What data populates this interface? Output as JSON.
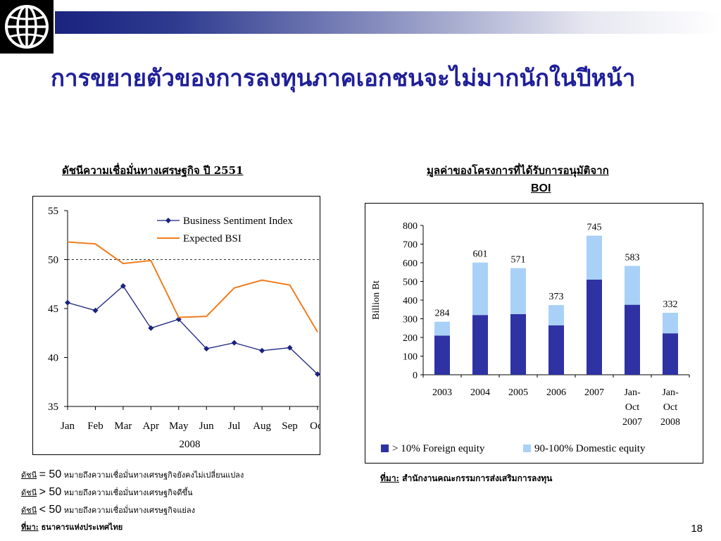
{
  "slide": {
    "title": "การขยายตัวของการลงทุนภาคเอกชนจะไม่มากนักในปีหน้า",
    "page_number": "18"
  },
  "colors": {
    "title_blue": "#1f1f99",
    "bsi_navy": "#1a237e",
    "expected_orange": "#ef7d1e",
    "foreign_bar": "#2e32a3",
    "domestic_bar": "#a9d1f7"
  },
  "left_chart": {
    "heading": "ดัชนีความเชื่อมั่นทางเศรษฐกิจ ปี 2551",
    "notes": [
      {
        "prefix": "ดัชนี",
        "op": "= 50",
        "text": " หมายถึงความเชื่อมั่นทางเศรษฐกิจยังคงไม่เปลี่ยนแปลง"
      },
      {
        "prefix": "ดัชนี",
        "op": "> 50",
        "text": " หมายถึงความเชื่อมั่นทางเศรษฐกิจดีขึ้น"
      },
      {
        "prefix": "ดัชนี",
        "op": "< 50",
        "text": " หมายถึงความเชื่อมั่นทางเศรษฐกิจแย่ลง"
      }
    ],
    "source_label": "ที่มา:",
    "source_text": " ธนาคารแห่งประเทศไทย"
  },
  "right_chart": {
    "heading_line1": "มูลค่าของโครงการที่ได้รับการอนุมัติจาก",
    "heading_line2": "BOI",
    "source_label": "ที่มา:",
    "source_text": " สำนักงานคณะกรรมการส่งเสริมการลงทุน"
  },
  "chart_data": [
    {
      "type": "line",
      "title": "ดัชนีความเชื่อมั่นทางเศรษฐกิจ ปี 2551",
      "xlabel": "2008",
      "ylabel": "",
      "categories": [
        "Jan",
        "Feb",
        "Mar",
        "Apr",
        "May",
        "Jun",
        "Jul",
        "Aug",
        "Sep",
        "Oct"
      ],
      "ylim": [
        35,
        55
      ],
      "yticks": [
        35,
        40,
        45,
        50,
        55
      ],
      "reference_line": 50,
      "legend_position": "top-right",
      "series": [
        {
          "name": "Business Sentiment Index",
          "values": [
            45.6,
            44.8,
            47.3,
            43.0,
            43.9,
            40.9,
            41.5,
            40.7,
            41.0,
            38.3
          ]
        },
        {
          "name": "Expected BSI",
          "values": [
            51.8,
            51.6,
            49.6,
            49.9,
            44.1,
            44.2,
            47.1,
            47.9,
            47.4,
            42.6
          ]
        }
      ]
    },
    {
      "type": "bar",
      "stacked": true,
      "title": "มูลค่าของโครงการที่ได้รับการอนุมัติจาก BOI",
      "xlabel": "",
      "ylabel": "Billion Bt",
      "categories": [
        "2003",
        "2004",
        "2005",
        "2006",
        "2007",
        "Jan-Oct 2007",
        "Jan-Oct 2008"
      ],
      "category_lines": [
        [
          "2003"
        ],
        [
          "2004"
        ],
        [
          "2005"
        ],
        [
          "2006"
        ],
        [
          "2007"
        ],
        [
          "Jan-",
          "Oct",
          "2007"
        ],
        [
          "Jan-",
          "Oct",
          "2008"
        ]
      ],
      "ylim": [
        0,
        800
      ],
      "yticks": [
        0,
        100,
        200,
        300,
        400,
        500,
        600,
        700,
        800
      ],
      "legend_position": "bottom",
      "totals": [
        284,
        601,
        571,
        373,
        745,
        583,
        332
      ],
      "series": [
        {
          "name": "> 10% Foreign equity",
          "values": [
            210,
            320,
            325,
            265,
            510,
            375,
            222
          ]
        },
        {
          "name": "90-100% Domestic equity",
          "values": [
            74,
            281,
            246,
            108,
            235,
            208,
            110
          ]
        }
      ]
    }
  ]
}
